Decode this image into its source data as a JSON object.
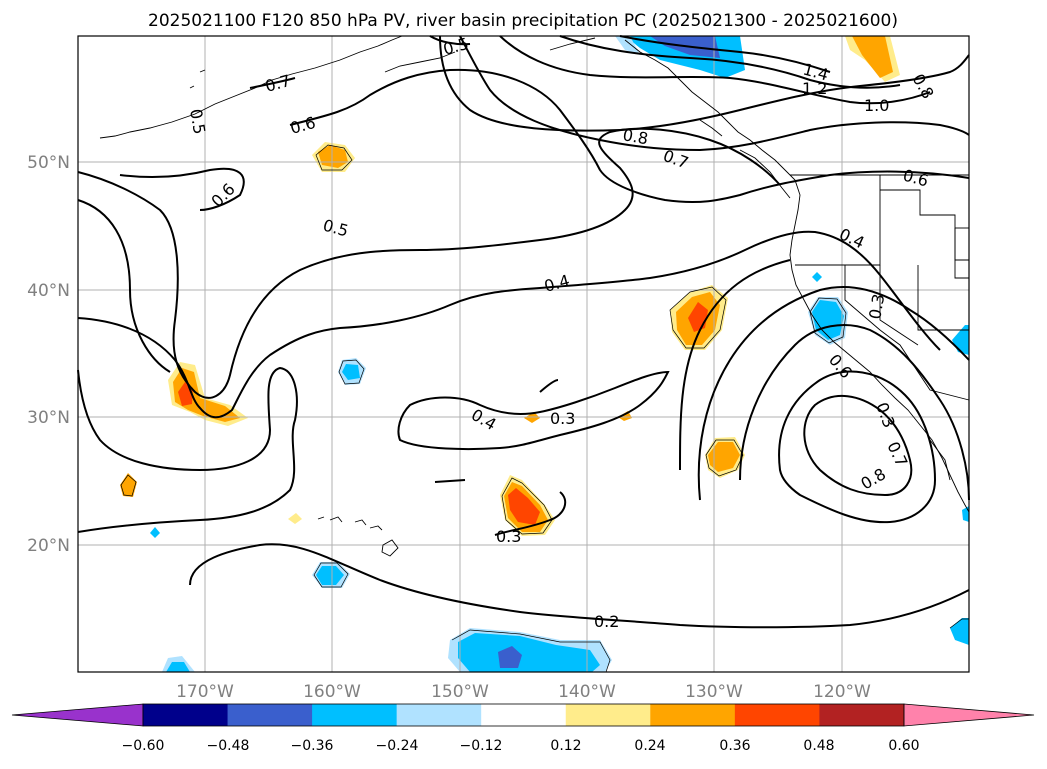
{
  "title": "2025021100 F120 850 hPa PV, river basin precipitation PC (2025021300 - 2025021600)",
  "lat_labels": [
    "50°N",
    "40°N",
    "30°N",
    "20°N"
  ],
  "lon_labels": [
    "170°W",
    "160°W",
    "150°W",
    "140°W",
    "130°W",
    "120°W"
  ],
  "contour_labels": [
    "0.2",
    "0.3",
    "0.3",
    "0.3",
    "0.3",
    "0.4",
    "0.4",
    "0.4",
    "0.5",
    "0.5",
    "0.5",
    "0.6",
    "0.6",
    "0.6",
    "0.6",
    "0.7",
    "0.7",
    "0.7",
    "0.8",
    "0.8",
    "0.8",
    "1.0",
    "1.2",
    "1.4"
  ],
  "colorbar": {
    "ticks": [
      "−0.60",
      "−0.48",
      "−0.36",
      "−0.24",
      "−0.12",
      "0.12",
      "0.24",
      "0.36",
      "0.48",
      "0.60"
    ],
    "colors": [
      "#9932cc",
      "#00008b",
      "#3a5fcd",
      "#00bfff",
      "#b0e2ff",
      "#ffffff",
      "#ffec8b",
      "#ffa500",
      "#ff4500",
      "#b22222",
      "#ff82ab"
    ]
  },
  "colors": {
    "contour": "#000000",
    "coast": "#000000",
    "grid": "#b0b0b0",
    "axis_label": "#808080"
  }
}
